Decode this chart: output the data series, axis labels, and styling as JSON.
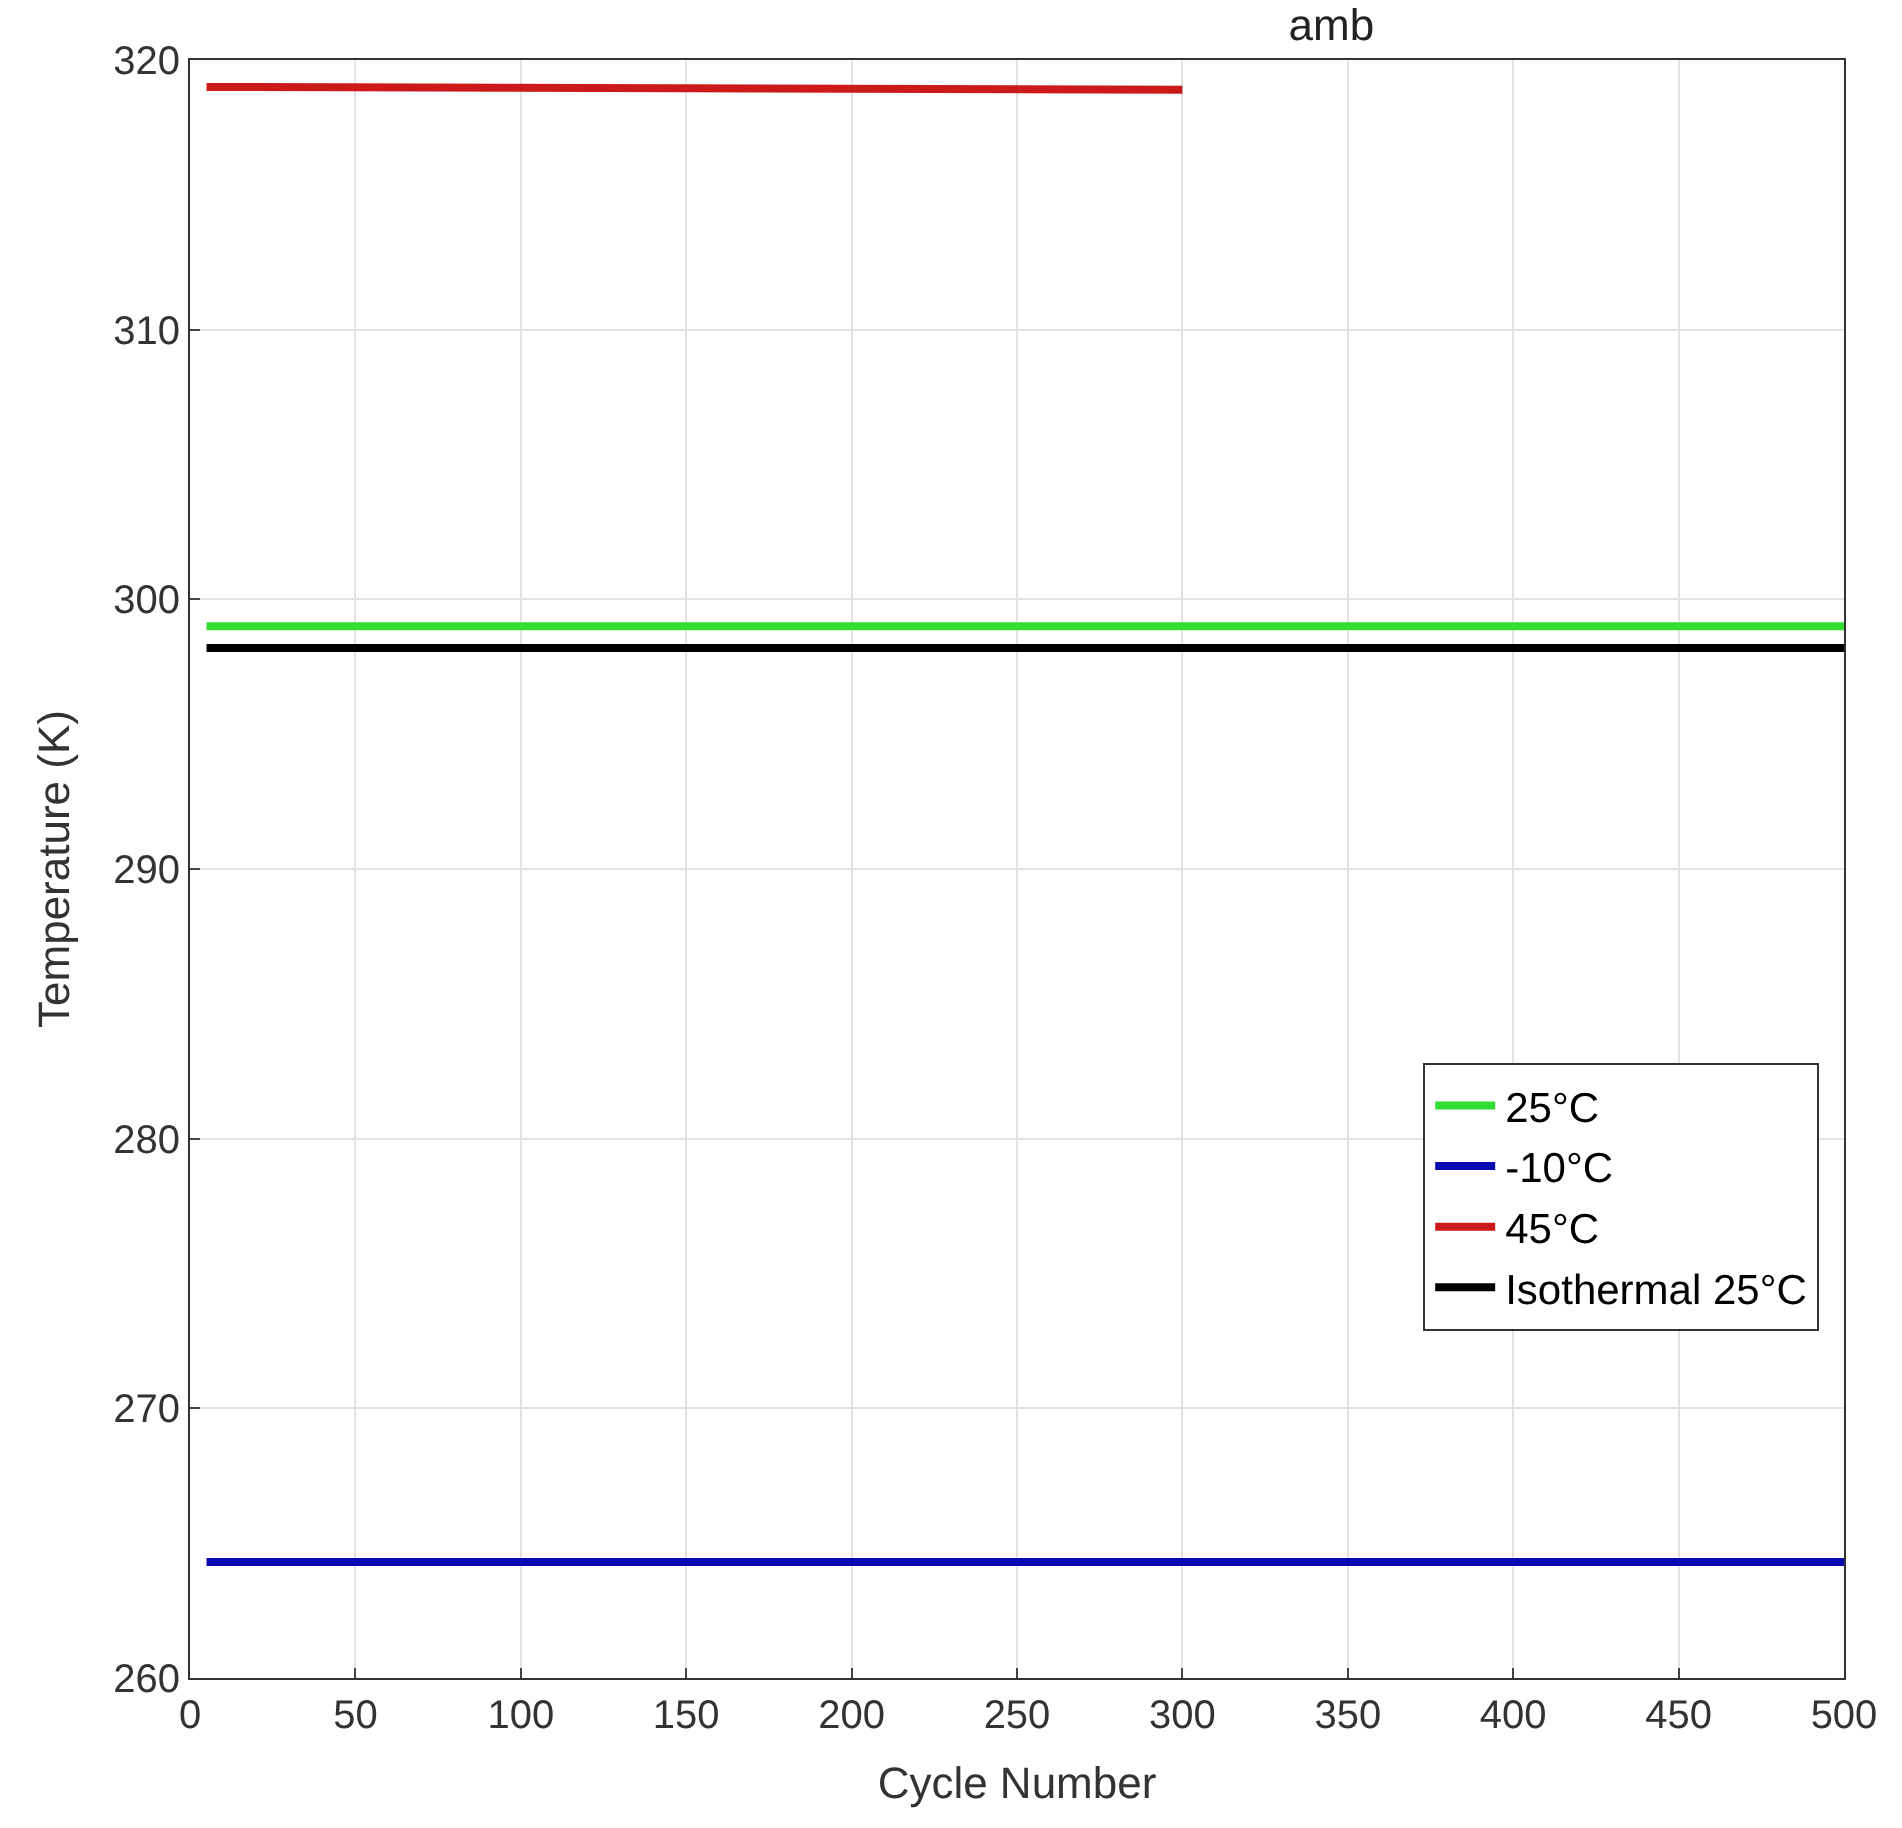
{
  "chart_data": {
    "type": "line",
    "title": "amb",
    "xlabel": "Cycle Number",
    "ylabel": "Temperature (K)",
    "xlim": [
      0,
      500
    ],
    "xticks": [
      0,
      50,
      100,
      150,
      200,
      250,
      300,
      350,
      400,
      450,
      500
    ],
    "ylim": [
      260,
      320
    ],
    "yticks": [
      260,
      270,
      280,
      290,
      300,
      310,
      320
    ],
    "grid": true,
    "legend": "bottom right",
    "marker": "none",
    "line_style": "solid",
    "series": [
      {
        "name": "25°C",
        "color": "#33dd33",
        "x": [
          5,
          500
        ],
        "values": [
          299.0,
          299.0
        ]
      },
      {
        "name": "-10°C",
        "color": "#0a0ab4",
        "x": [
          5,
          500
        ],
        "values": [
          264.3,
          264.3
        ]
      },
      {
        "name": "45°C",
        "color": "#cc1a1a",
        "x": [
          5,
          300
        ],
        "values": [
          319.0,
          318.9
        ]
      },
      {
        "name": "Isothermal 25°C",
        "color": "#000000",
        "x": [
          5,
          500
        ],
        "values": [
          298.2,
          298.2
        ]
      }
    ]
  }
}
